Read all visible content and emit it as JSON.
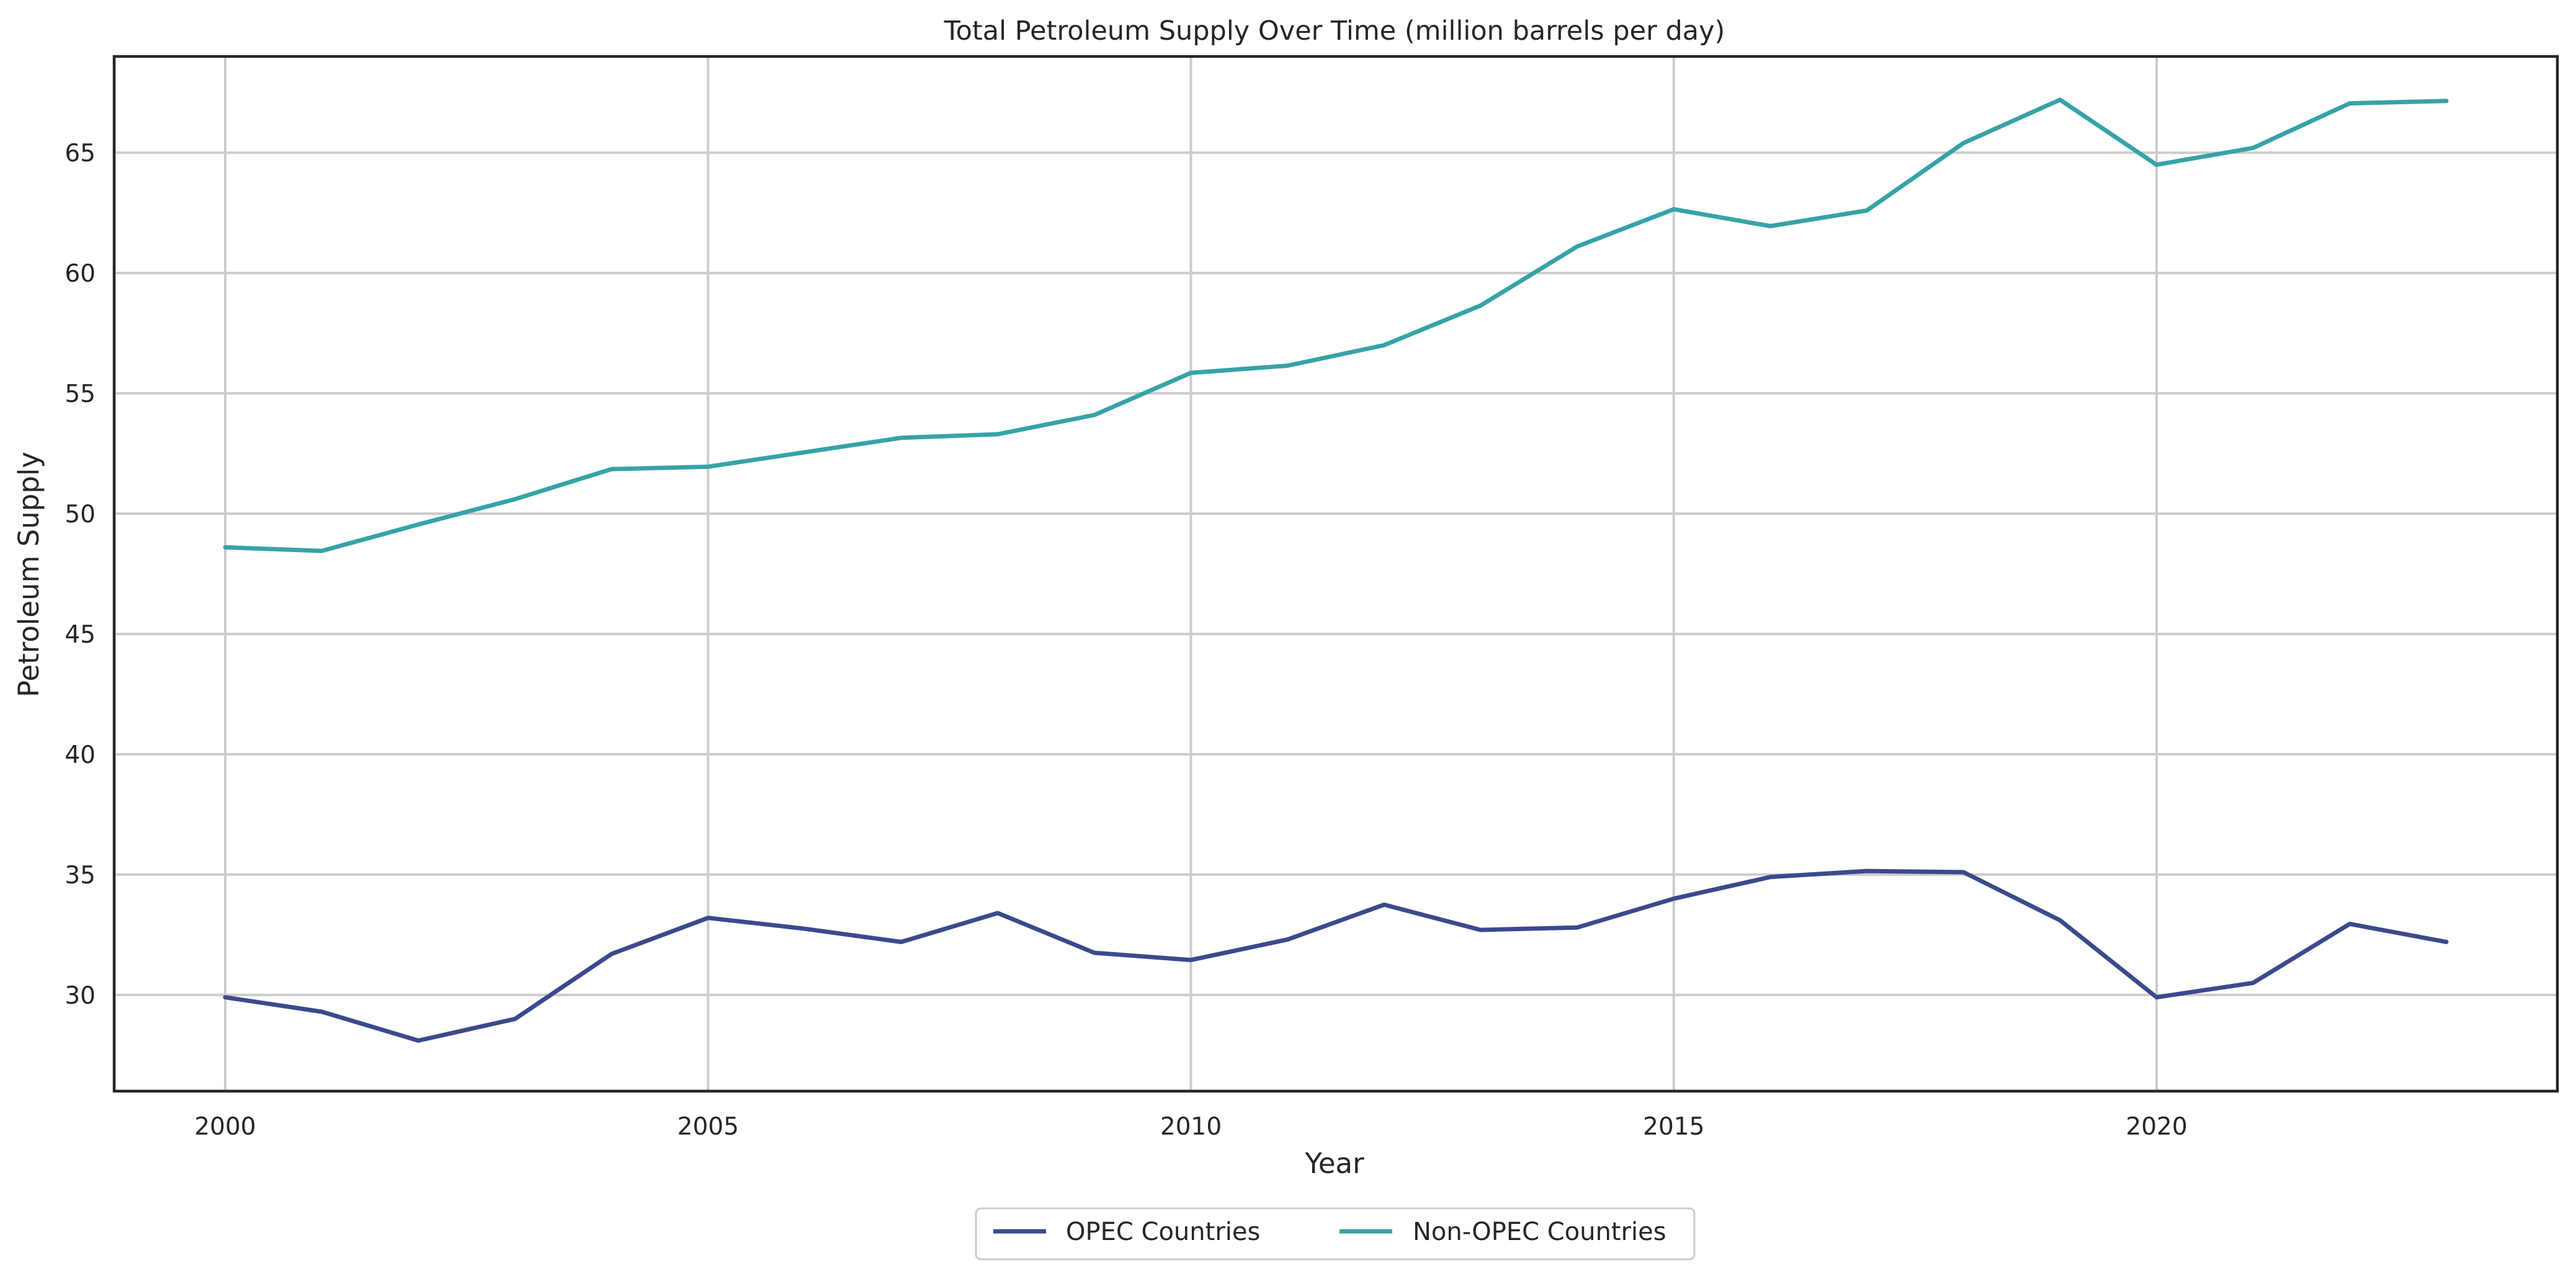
{
  "chart_data": {
    "type": "line",
    "title": "Total Petroleum Supply Over Time (million barrels per day)",
    "xlabel": "Year",
    "ylabel": "Petroleum Supply",
    "xlim": [
      1998.85,
      2024.15
    ],
    "ylim": [
      26.0,
      69.0
    ],
    "x_ticks": [
      2000,
      2005,
      2010,
      2015,
      2020
    ],
    "y_ticks": [
      30,
      35,
      40,
      45,
      50,
      55,
      60,
      65
    ],
    "grid": true,
    "legend_position": "bottom-center",
    "x": [
      2000,
      2001,
      2002,
      2003,
      2004,
      2005,
      2006,
      2007,
      2008,
      2009,
      2010,
      2011,
      2012,
      2013,
      2014,
      2015,
      2016,
      2017,
      2018,
      2019,
      2020,
      2021,
      2022,
      2023
    ],
    "series": [
      {
        "name": "OPEC Countries",
        "color": "#3b4a8c",
        "values": [
          29.9,
          29.3,
          28.1,
          29.0,
          31.7,
          33.2,
          32.75,
          32.2,
          33.4,
          31.75,
          31.45,
          32.3,
          33.75,
          32.7,
          32.8,
          34.0,
          34.9,
          35.15,
          35.1,
          33.1,
          29.9,
          30.5,
          32.95,
          32.2
        ]
      },
      {
        "name": "Non-OPEC Countries",
        "color": "#36a3a8",
        "values": [
          48.6,
          48.45,
          49.55,
          50.6,
          51.85,
          51.95,
          52.55,
          53.15,
          53.3,
          54.1,
          55.85,
          56.15,
          57.0,
          58.65,
          61.1,
          62.65,
          61.95,
          62.6,
          65.4,
          67.2,
          64.5,
          65.2,
          67.05,
          67.15
        ]
      }
    ]
  }
}
